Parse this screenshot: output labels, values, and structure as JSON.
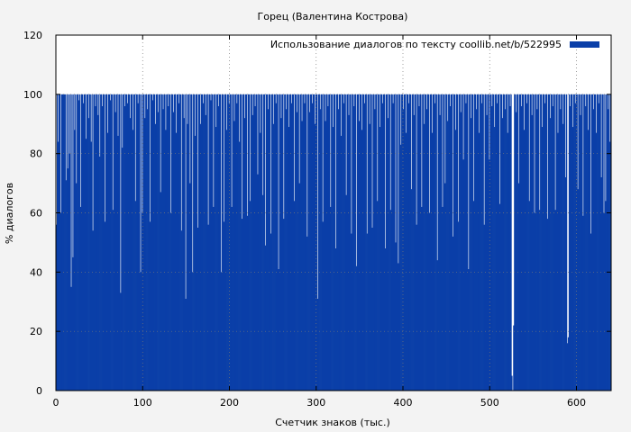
{
  "chart_data": {
    "type": "bar",
    "title": "Горец (Валентина Кострова)",
    "xlabel": "Счетчик знаков (тыс.)",
    "ylabel": "% диалогов",
    "xlim": [
      0,
      640
    ],
    "ylim": [
      0,
      120
    ],
    "xticks": [
      0,
      100,
      200,
      300,
      400,
      500,
      600
    ],
    "yticks": [
      0,
      20,
      40,
      60,
      80,
      100,
      120
    ],
    "grid": true,
    "legend_position": "top-right",
    "series": [
      {
        "name": "Использование диалогов по тексту  coollib.net/b/522995",
        "color": "#0a3fa8",
        "bar_width": 1,
        "x_start": 0,
        "baseline": 100,
        "dips": [
          [
            0,
            56
          ],
          [
            2,
            84
          ],
          [
            5,
            60
          ],
          [
            7,
            100
          ],
          [
            9,
            100
          ],
          [
            11,
            71
          ],
          [
            13,
            75
          ],
          [
            15,
            80
          ],
          [
            17,
            35
          ],
          [
            19,
            45
          ],
          [
            21,
            88
          ],
          [
            23,
            70
          ],
          [
            26,
            98
          ],
          [
            28,
            62
          ],
          [
            31,
            97
          ],
          [
            34,
            85
          ],
          [
            37,
            92
          ],
          [
            40,
            84
          ],
          [
            42,
            54
          ],
          [
            45,
            96
          ],
          [
            48,
            93
          ],
          [
            50,
            79
          ],
          [
            53,
            96
          ],
          [
            56,
            57
          ],
          [
            59,
            87
          ],
          [
            62,
            98
          ],
          [
            65,
            61
          ],
          [
            68,
            94
          ],
          [
            71,
            86
          ],
          [
            74,
            33
          ],
          [
            76,
            82
          ],
          [
            79,
            96
          ],
          [
            82,
            97
          ],
          [
            85,
            92
          ],
          [
            88,
            88
          ],
          [
            91,
            64
          ],
          [
            94,
            97
          ],
          [
            97,
            40
          ],
          [
            99,
            60
          ],
          [
            102,
            92
          ],
          [
            105,
            95
          ],
          [
            108,
            57
          ],
          [
            111,
            98
          ],
          [
            114,
            90
          ],
          [
            117,
            94
          ],
          [
            120,
            67
          ],
          [
            123,
            95
          ],
          [
            126,
            88
          ],
          [
            129,
            96
          ],
          [
            132,
            60
          ],
          [
            135,
            94
          ],
          [
            138,
            87
          ],
          [
            141,
            97
          ],
          [
            144,
            54
          ],
          [
            147,
            92
          ],
          [
            149,
            31
          ],
          [
            151,
            90
          ],
          [
            154,
            70
          ],
          [
            157,
            40
          ],
          [
            160,
            86
          ],
          [
            163,
            55
          ],
          [
            166,
            90
          ],
          [
            169,
            97
          ],
          [
            172,
            93
          ],
          [
            175,
            56
          ],
          [
            178,
            98
          ],
          [
            181,
            62
          ],
          [
            184,
            89
          ],
          [
            187,
            96
          ],
          [
            190,
            40
          ],
          [
            193,
            57
          ],
          [
            196,
            88
          ],
          [
            199,
            97
          ],
          [
            202,
            62
          ],
          [
            205,
            91
          ],
          [
            208,
            97
          ],
          [
            211,
            84
          ],
          [
            214,
            58
          ],
          [
            217,
            92
          ],
          [
            220,
            59
          ],
          [
            223,
            64
          ],
          [
            226,
            93
          ],
          [
            229,
            96
          ],
          [
            232,
            73
          ],
          [
            235,
            87
          ],
          [
            238,
            66
          ],
          [
            241,
            49
          ],
          [
            244,
            95
          ],
          [
            247,
            53
          ],
          [
            250,
            90
          ],
          [
            253,
            97
          ],
          [
            256,
            41
          ],
          [
            259,
            92
          ],
          [
            262,
            58
          ],
          [
            265,
            95
          ],
          [
            268,
            89
          ],
          [
            271,
            97
          ],
          [
            274,
            64
          ],
          [
            277,
            94
          ],
          [
            280,
            70
          ],
          [
            283,
            91
          ],
          [
            286,
            97
          ],
          [
            289,
            52
          ],
          [
            292,
            94
          ],
          [
            295,
            97
          ],
          [
            298,
            90
          ],
          [
            301,
            31
          ],
          [
            304,
            95
          ],
          [
            307,
            57
          ],
          [
            310,
            91
          ],
          [
            313,
            96
          ],
          [
            316,
            62
          ],
          [
            319,
            89
          ],
          [
            322,
            48
          ],
          [
            325,
            95
          ],
          [
            328,
            86
          ],
          [
            331,
            97
          ],
          [
            334,
            66
          ],
          [
            337,
            93
          ],
          [
            340,
            53
          ],
          [
            343,
            96
          ],
          [
            346,
            42
          ],
          [
            349,
            91
          ],
          [
            352,
            88
          ],
          [
            355,
            97
          ],
          [
            358,
            53
          ],
          [
            361,
            90
          ],
          [
            364,
            55
          ],
          [
            367,
            95
          ],
          [
            370,
            64
          ],
          [
            373,
            89
          ],
          [
            376,
            97
          ],
          [
            379,
            48
          ],
          [
            382,
            92
          ],
          [
            385,
            61
          ],
          [
            388,
            97
          ],
          [
            391,
            50
          ],
          [
            394,
            43
          ],
          [
            397,
            83
          ],
          [
            400,
            95
          ],
          [
            403,
            87
          ],
          [
            406,
            97
          ],
          [
            409,
            68
          ],
          [
            412,
            93
          ],
          [
            415,
            56
          ],
          [
            418,
            96
          ],
          [
            421,
            62
          ],
          [
            424,
            90
          ],
          [
            427,
            95
          ],
          [
            430,
            60
          ],
          [
            433,
            87
          ],
          [
            436,
            97
          ],
          [
            439,
            44
          ],
          [
            442,
            93
          ],
          [
            445,
            62
          ],
          [
            448,
            70
          ],
          [
            451,
            91
          ],
          [
            454,
            96
          ],
          [
            457,
            52
          ],
          [
            460,
            88
          ],
          [
            463,
            57
          ],
          [
            466,
            94
          ],
          [
            469,
            78
          ],
          [
            472,
            97
          ],
          [
            475,
            41
          ],
          [
            478,
            92
          ],
          [
            481,
            64
          ],
          [
            484,
            95
          ],
          [
            487,
            87
          ],
          [
            490,
            97
          ],
          [
            493,
            56
          ],
          [
            496,
            93
          ],
          [
            499,
            78
          ],
          [
            502,
            96
          ],
          [
            505,
            89
          ],
          [
            508,
            97
          ],
          [
            511,
            63
          ],
          [
            514,
            92
          ],
          [
            517,
            95
          ],
          [
            520,
            87
          ],
          [
            523,
            96
          ],
          [
            525,
            5
          ],
          [
            526,
            0
          ],
          [
            527,
            22
          ],
          [
            530,
            94
          ],
          [
            533,
            70
          ],
          [
            536,
            96
          ],
          [
            539,
            88
          ],
          [
            542,
            97
          ],
          [
            545,
            64
          ],
          [
            548,
            93
          ],
          [
            551,
            60
          ],
          [
            554,
            95
          ],
          [
            557,
            61
          ],
          [
            560,
            89
          ],
          [
            563,
            97
          ],
          [
            566,
            58
          ],
          [
            569,
            92
          ],
          [
            572,
            96
          ],
          [
            575,
            61
          ],
          [
            578,
            87
          ],
          [
            581,
            95
          ],
          [
            584,
            90
          ],
          [
            587,
            72
          ],
          [
            589,
            16
          ],
          [
            590,
            18
          ],
          [
            592,
            96
          ],
          [
            595,
            89
          ],
          [
            598,
            97
          ],
          [
            601,
            68
          ],
          [
            604,
            93
          ],
          [
            607,
            59
          ],
          [
            610,
            96
          ],
          [
            613,
            88
          ],
          [
            616,
            53
          ],
          [
            619,
            95
          ],
          [
            622,
            87
          ],
          [
            625,
            97
          ],
          [
            628,
            72
          ],
          [
            631,
            60
          ],
          [
            633,
            64
          ],
          [
            636,
            95
          ],
          [
            638,
            84
          ]
        ]
      }
    ]
  }
}
